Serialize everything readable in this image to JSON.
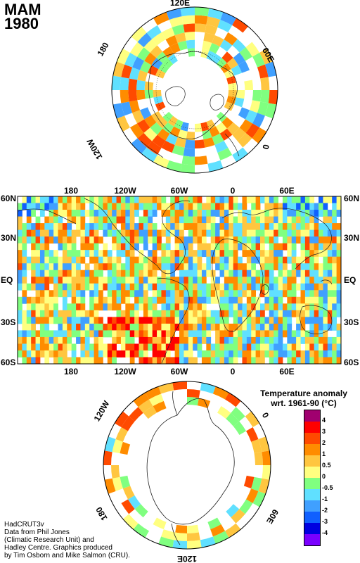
{
  "title": {
    "season": "MAM",
    "year": "1980"
  },
  "north_map": {
    "labels": [
      {
        "text": "120E",
        "name": "north-label-120e"
      },
      {
        "text": "180",
        "name": "north-label-180"
      },
      {
        "text": "60E",
        "name": "north-label-60e"
      },
      {
        "text": "120W",
        "name": "north-label-120w"
      },
      {
        "text": "0",
        "name": "north-label-0"
      }
    ]
  },
  "world_map": {
    "top_lon_labels": [
      "180",
      "120W",
      "60W",
      "0",
      "60E"
    ],
    "bottom_lon_labels": [
      "180",
      "120W",
      "60W",
      "0",
      "60E"
    ],
    "left_lat_labels": [
      "60N",
      "30N",
      "EQ",
      "30S",
      "60S"
    ],
    "right_lat_labels": [
      "60N",
      "30N",
      "EQ",
      "30S",
      "60S"
    ]
  },
  "south_map": {
    "labels": [
      {
        "text": "120W",
        "name": "south-label-120w"
      },
      {
        "text": "0",
        "name": "south-label-0"
      },
      {
        "text": "180",
        "name": "south-label-180"
      },
      {
        "text": "60E",
        "name": "south-label-60e"
      },
      {
        "text": "120E",
        "name": "south-label-120e"
      }
    ]
  },
  "legend": {
    "title_line1": "Temperature anomaly",
    "title_line2": "wrt. 1961-90  (°C)",
    "labels": [
      "4",
      "3",
      "2",
      "1",
      "0.5",
      "0",
      "-0.5",
      "-1",
      "-2",
      "-3",
      "-4"
    ],
    "colors": [
      "#a0006f",
      "#ff0000",
      "#ff4a00",
      "#ff8c00",
      "#ffc640",
      "#ffff80",
      "#80ff80",
      "#60e0ff",
      "#40a0ff",
      "#1060ff",
      "#0000e0",
      "#7a00ff"
    ]
  },
  "credit": [
    "HadCRUT3v",
    "Data from Phil Jones",
    "(Climatic Research Unit) and",
    "Hadley Centre.  Graphics produced",
    "by Tim Osborn and Mike Salmon (CRU)."
  ]
}
